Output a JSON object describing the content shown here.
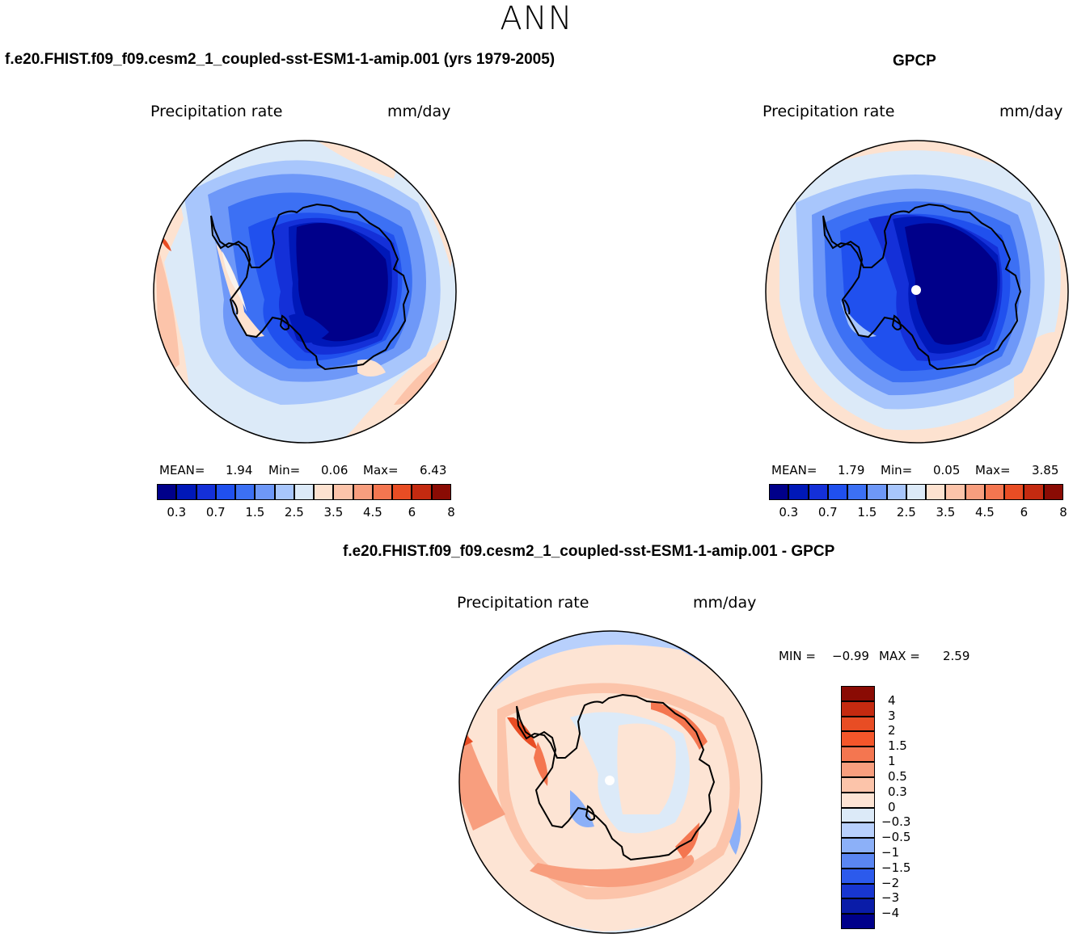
{
  "season": "ANN",
  "panels": [
    {
      "title": "f.e20.FHIST.f09_f09.cesm2_1_coupled-sst-ESM1-1-amip.001 (yrs 1979-2005)",
      "variable": "Precipitation rate",
      "units": "mm/day",
      "stats": {
        "mean_label": "MEAN=",
        "mean": "1.94",
        "min_label": "Min=",
        "min": "0.06",
        "max_label": "Max=",
        "max": "6.43"
      },
      "pole_marker": false
    },
    {
      "title": "GPCP",
      "variable": "Precipitation rate",
      "units": "mm/day",
      "stats": {
        "mean_label": "MEAN=",
        "mean": "1.79",
        "min_label": "Min=",
        "min": "0.05",
        "max_label": "Max=",
        "max": "3.85"
      },
      "pole_marker": true
    }
  ],
  "abs_colorbar": {
    "ticks": [
      "0.3",
      "0.7",
      "1.5",
      "2.5",
      "3.5",
      "4.5",
      "6",
      "8"
    ],
    "colors": [
      "#00008a",
      "#0018b8",
      "#1430d8",
      "#2050ee",
      "#3c70f4",
      "#6e98f8",
      "#a8c6fc",
      "#dceaf8",
      "#fde2d0",
      "#fcc4aa",
      "#f89e7e",
      "#f47650",
      "#e84d24",
      "#c42a10",
      "#8a0b04"
    ]
  },
  "diff_panel": {
    "title": "f.e20.FHIST.f09_f09.cesm2_1_coupled-sst-ESM1-1-amip.001 - GPCP",
    "variable": "Precipitation rate",
    "units": "mm/day",
    "minmax": {
      "min_label": "MIN =",
      "min": "−0.99",
      "max_label": "MAX =",
      "max": "2.59"
    },
    "pole_marker": true
  },
  "diff_colorbar": {
    "ticks": [
      "4",
      "3",
      "2",
      "1.5",
      "1",
      "0.5",
      "0.3",
      "0",
      "−0.3",
      "−0.5",
      "−1",
      "−1.5",
      "−2",
      "−3",
      "−4"
    ],
    "colors": [
      "#8a0b04",
      "#c42a10",
      "#e84d24",
      "#f4562a",
      "#f47650",
      "#f89e7e",
      "#fcc4aa",
      "#fde4d4",
      "#dceaf8",
      "#b8d0fc",
      "#8cb0f8",
      "#5a86f2",
      "#2c5aec",
      "#1836d0",
      "#0a1ca8",
      "#00008a"
    ]
  }
}
